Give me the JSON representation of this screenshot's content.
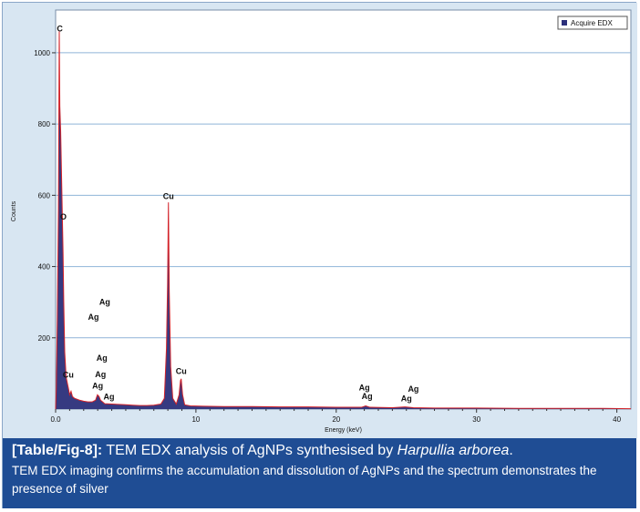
{
  "chart_data": {
    "type": "line",
    "title": "",
    "xlabel": "Energy (keV)",
    "ylabel": "Counts",
    "xlim": [
      0,
      41
    ],
    "ylim": [
      0,
      1120
    ],
    "x_ticks": [
      0.0,
      10,
      20,
      30,
      40
    ],
    "x_tick_labels": [
      "0.0",
      "10",
      "20",
      "30",
      "40"
    ],
    "y_ticks": [
      200,
      400,
      600,
      800,
      1000
    ],
    "y_tick_labels": [
      "200",
      "400",
      "600",
      "800",
      "1000"
    ],
    "grid": "horizontal",
    "legend": {
      "position": "top-right",
      "entries": [
        "Acquire EDX"
      ]
    },
    "series": [
      {
        "name": "Acquire EDX",
        "color": "#2b2f7a",
        "points": [
          [
            0.0,
            0
          ],
          [
            0.05,
            60
          ],
          [
            0.12,
            250
          ],
          [
            0.2,
            560
          ],
          [
            0.26,
            1060
          ],
          [
            0.3,
            850
          ],
          [
            0.36,
            780
          ],
          [
            0.45,
            600
          ],
          [
            0.53,
            440
          ],
          [
            0.58,
            300
          ],
          [
            0.65,
            160
          ],
          [
            0.75,
            90
          ],
          [
            0.85,
            70
          ],
          [
            0.93,
            55
          ],
          [
            1.0,
            40
          ],
          [
            1.1,
            50
          ],
          [
            1.2,
            35
          ],
          [
            1.35,
            30
          ],
          [
            1.5,
            28
          ],
          [
            1.7,
            25
          ],
          [
            2.0,
            22
          ],
          [
            2.3,
            20
          ],
          [
            2.6,
            20
          ],
          [
            2.85,
            25
          ],
          [
            2.98,
            40
          ],
          [
            3.1,
            35
          ],
          [
            3.2,
            25
          ],
          [
            3.35,
            20
          ],
          [
            3.5,
            15
          ],
          [
            4.0,
            14
          ],
          [
            4.5,
            13
          ],
          [
            5.0,
            12
          ],
          [
            5.5,
            11
          ],
          [
            6.0,
            10
          ],
          [
            6.5,
            10
          ],
          [
            7.0,
            11
          ],
          [
            7.5,
            14
          ],
          [
            7.75,
            30
          ],
          [
            7.9,
            170
          ],
          [
            7.98,
            350
          ],
          [
            8.04,
            580
          ],
          [
            8.1,
            330
          ],
          [
            8.2,
            120
          ],
          [
            8.35,
            30
          ],
          [
            8.6,
            14
          ],
          [
            8.8,
            40
          ],
          [
            8.9,
            80
          ],
          [
            8.95,
            85
          ],
          [
            9.05,
            40
          ],
          [
            9.2,
            12
          ],
          [
            9.6,
            9
          ],
          [
            10.5,
            8
          ],
          [
            12.0,
            7
          ],
          [
            14.0,
            7
          ],
          [
            16.0,
            6
          ],
          [
            18.0,
            6
          ],
          [
            20.0,
            5
          ],
          [
            21.8,
            5
          ],
          [
            22.1,
            9
          ],
          [
            22.4,
            5
          ],
          [
            24.0,
            4
          ],
          [
            24.9,
            6
          ],
          [
            25.5,
            4
          ],
          [
            27.0,
            3
          ],
          [
            30.0,
            3
          ],
          [
            33.0,
            2
          ],
          [
            36.0,
            2
          ],
          [
            39.0,
            2
          ],
          [
            41.0,
            1
          ]
        ]
      }
    ],
    "annotations": [
      {
        "text": "C",
        "x": 0.3,
        "y": 1060
      },
      {
        "text": "O",
        "x": 0.55,
        "y": 532
      },
      {
        "text": "Cu",
        "x": 0.9,
        "y": 88
      },
      {
        "text": "Ag",
        "x": 3.5,
        "y": 293
      },
      {
        "text": "Ag",
        "x": 2.7,
        "y": 250
      },
      {
        "text": "Ag",
        "x": 3.3,
        "y": 136
      },
      {
        "text": "Ag",
        "x": 3.2,
        "y": 90
      },
      {
        "text": "Ag",
        "x": 3.0,
        "y": 57
      },
      {
        "text": "Ag",
        "x": 3.8,
        "y": 27
      },
      {
        "text": "Cu",
        "x": 8.04,
        "y": 590
      },
      {
        "text": "Cu",
        "x": 8.95,
        "y": 98
      },
      {
        "text": "Ag",
        "x": 22.0,
        "y": 52
      },
      {
        "text": "Ag",
        "x": 22.2,
        "y": 28
      },
      {
        "text": "Ag",
        "x": 25.5,
        "y": 48
      },
      {
        "text": "Ag",
        "x": 25.0,
        "y": 22
      }
    ]
  },
  "caption": {
    "label": "[Table/Fig-8]:",
    "title_text": "TEM EDX analysis of AgNPs synthesised by",
    "species": "Harpullia arborea",
    "title_end": ".",
    "description": "TEM EDX imaging confirms the accumulation and dissolution of AgNPs and the spectrum demonstrates the presence of silver"
  }
}
